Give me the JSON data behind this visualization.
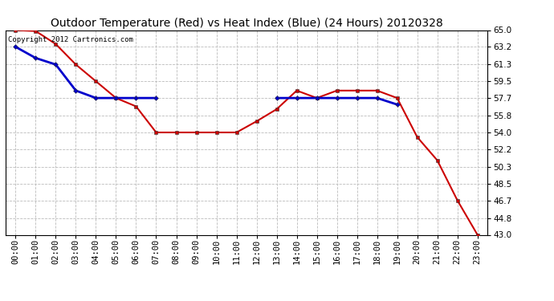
{
  "title": "Outdoor Temperature (Red) vs Heat Index (Blue) (24 Hours) 20120328",
  "copyright_text": "Copyright 2012 Cartronics.com",
  "x_labels": [
    "00:00",
    "01:00",
    "02:00",
    "03:00",
    "04:00",
    "05:00",
    "06:00",
    "07:00",
    "08:00",
    "09:00",
    "10:00",
    "11:00",
    "12:00",
    "13:00",
    "14:00",
    "15:00",
    "16:00",
    "17:00",
    "18:00",
    "19:00",
    "20:00",
    "21:00",
    "22:00",
    "23:00"
  ],
  "red_data": [
    65.0,
    64.9,
    63.5,
    61.3,
    59.5,
    57.7,
    56.8,
    54.0,
    54.0,
    54.0,
    54.0,
    54.0,
    55.2,
    56.5,
    58.5,
    57.7,
    58.5,
    58.5,
    58.5,
    57.7,
    53.5,
    51.0,
    46.7,
    43.0
  ],
  "blue_data": [
    63.2,
    62.0,
    61.3,
    58.5,
    57.7,
    57.7,
    57.7,
    57.7,
    null,
    null,
    null,
    null,
    null,
    57.7,
    57.7,
    57.7,
    57.7,
    57.7,
    57.7,
    57.0,
    null,
    null,
    null,
    null
  ],
  "ylim_min": 43.0,
  "ylim_max": 65.0,
  "yticks": [
    43.0,
    44.8,
    46.7,
    48.5,
    50.3,
    52.2,
    54.0,
    55.8,
    57.7,
    59.5,
    61.3,
    63.2,
    65.0
  ],
  "red_color": "#cc0000",
  "blue_color": "#0000cc",
  "bg_color": "#ffffff",
  "grid_color": "#bbbbbb",
  "title_fontsize": 10,
  "tick_fontsize": 7.5,
  "copyright_fontsize": 6.5,
  "figwidth": 6.9,
  "figheight": 3.75,
  "dpi": 100
}
